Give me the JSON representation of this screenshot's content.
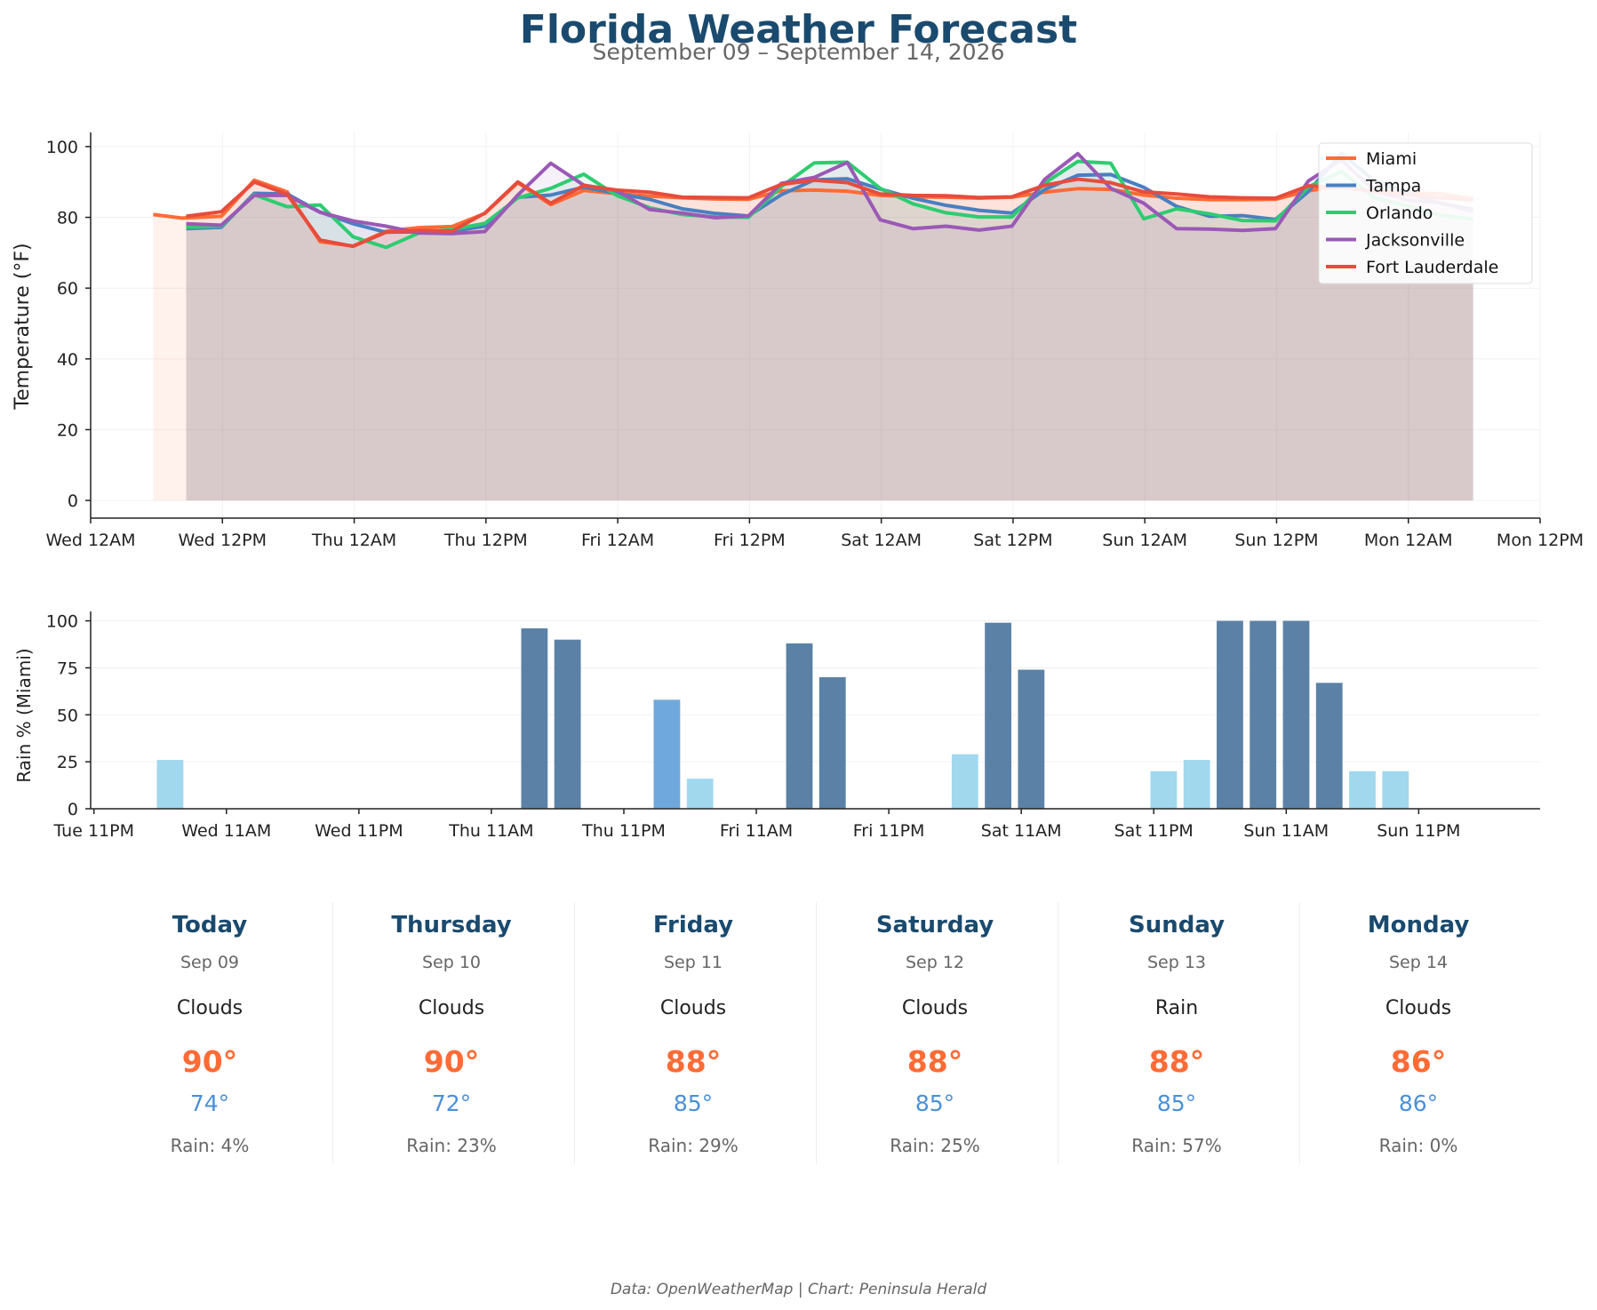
{
  "header": {
    "title": "Florida Weather Forecast",
    "subtitle": "September 09 – September 14, 2026"
  },
  "chart_data": [
    {
      "type": "line",
      "ylabel": "Temperature (°F)",
      "ylim": [
        -5,
        104
      ],
      "yticks": [
        0,
        20,
        40,
        60,
        80,
        100
      ],
      "x_unit": "hour of forecast period (0 = Wed 12AM, Sep 09)",
      "xlim": [
        0,
        132
      ],
      "xticks": [
        {
          "x": 0,
          "label": "Wed 12AM"
        },
        {
          "x": 12,
          "label": "Wed 12PM"
        },
        {
          "x": 24,
          "label": "Thu 12AM"
        },
        {
          "x": 36,
          "label": "Thu 12PM"
        },
        {
          "x": 48,
          "label": "Fri 12AM"
        },
        {
          "x": 60,
          "label": "Fri 12PM"
        },
        {
          "x": 72,
          "label": "Sat 12AM"
        },
        {
          "x": 84,
          "label": "Sat 12PM"
        },
        {
          "x": 96,
          "label": "Sun 12AM"
        },
        {
          "x": 108,
          "label": "Sun 12PM"
        },
        {
          "x": 120,
          "label": "Mon 12AM"
        },
        {
          "x": 132,
          "label": "Mon 12PM"
        }
      ],
      "legend_position": "top-right",
      "grid": true,
      "series": [
        {
          "name": "Miami",
          "color": "#ff6b35",
          "fill": true,
          "x": [
            5.7,
            8.3,
            11.9,
            14.9,
            17.9,
            20.9,
            23.9,
            26.9,
            29.9,
            32.9,
            35.9,
            38.9,
            41.9,
            44.9,
            47.9,
            50.9,
            53.9,
            56.9,
            59.9,
            62.9,
            65.9,
            68.9,
            71.9,
            74.9,
            77.9,
            80.9,
            83.9,
            86.9,
            89.9,
            92.9,
            95.9,
            98.9,
            101.9,
            104.9,
            107.9,
            110.9,
            113.9,
            116.9,
            119.9,
            122.9,
            125.9
          ],
          "y": [
            80.8,
            79.8,
            80.3,
            90.5,
            87.2,
            73.1,
            71.9,
            76.1,
            77.1,
            77.4,
            81.1,
            89.8,
            83.6,
            87.6,
            86.7,
            86.0,
            85.5,
            85.2,
            85.1,
            87.5,
            87.7,
            87.4,
            86.2,
            85.8,
            85.7,
            85.4,
            85.7,
            87.1,
            88.1,
            87.9,
            86.3,
            85.4,
            85.0,
            85.0,
            85.1,
            87.5,
            88.8,
            87.3,
            86.9,
            86.7,
            85.2
          ]
        },
        {
          "name": "Tampa",
          "color": "#4a7fc1",
          "fill": true,
          "x": [
            8.7,
            11.9,
            14.9,
            17.9,
            20.9,
            23.9,
            26.9,
            29.9,
            32.9,
            35.9,
            38.9,
            41.9,
            44.9,
            47.9,
            50.9,
            53.9,
            56.9,
            59.9,
            62.9,
            65.9,
            68.9,
            71.9,
            74.9,
            77.9,
            80.9,
            83.9,
            86.9,
            89.9,
            92.9,
            95.9,
            98.9,
            101.9,
            104.9,
            107.9,
            110.9,
            113.9,
            116.9,
            119.9,
            122.9,
            125.9
          ],
          "y": [
            76.8,
            77.2,
            86.8,
            86.6,
            81.5,
            78.2,
            75.8,
            75.9,
            76.1,
            77.5,
            85.7,
            86.3,
            88.5,
            86.8,
            85.1,
            82.4,
            81.1,
            80.4,
            86.4,
            90.6,
            90.9,
            88.0,
            85.4,
            83.4,
            82.0,
            81.2,
            87.9,
            91.9,
            92.1,
            88.5,
            83.1,
            80.3,
            80.5,
            79.4,
            87.3,
            98.1,
            90.3,
            87.0,
            84.0,
            82.2
          ]
        },
        {
          "name": "Orlando",
          "color": "#2ecc71",
          "fill": true,
          "x": [
            8.7,
            11.9,
            14.9,
            17.9,
            20.9,
            23.9,
            26.9,
            29.9,
            32.9,
            35.9,
            38.9,
            41.9,
            44.9,
            47.9,
            50.9,
            53.9,
            56.9,
            59.9,
            62.9,
            65.9,
            68.9,
            71.9,
            74.9,
            77.9,
            80.9,
            83.9,
            86.9,
            89.9,
            92.9,
            95.9,
            98.9,
            101.9,
            104.9,
            107.9,
            110.9,
            113.9,
            116.9,
            119.9,
            122.9,
            125.9
          ],
          "y": [
            77.2,
            77.5,
            86.4,
            83.0,
            83.5,
            74.5,
            71.5,
            75.6,
            76.6,
            78.3,
            85.5,
            88.2,
            92.2,
            86.2,
            82.7,
            80.8,
            80.1,
            80.0,
            88.7,
            95.4,
            95.6,
            88.2,
            83.8,
            81.3,
            80.1,
            80.1,
            89.7,
            95.8,
            95.3,
            79.6,
            82.4,
            81.0,
            79.1,
            79.0,
            88.6,
            93.0,
            85.6,
            83.2,
            80.6,
            79.5
          ]
        },
        {
          "name": "Jacksonville",
          "color": "#9b59b6",
          "fill": true,
          "x": [
            8.7,
            11.9,
            14.9,
            17.9,
            20.9,
            23.9,
            26.9,
            29.9,
            32.9,
            35.9,
            38.9,
            41.9,
            44.9,
            47.9,
            50.9,
            53.9,
            56.9,
            59.9,
            62.9,
            65.9,
            68.9,
            71.9,
            74.9,
            77.9,
            80.9,
            83.9,
            86.9,
            89.9,
            92.9,
            95.9,
            98.9,
            101.9,
            104.9,
            107.9,
            110.9,
            113.9,
            116.9,
            119.9,
            122.9,
            125.9
          ],
          "y": [
            78.2,
            77.8,
            86.2,
            86.2,
            81.4,
            79.0,
            77.5,
            75.6,
            75.4,
            76.0,
            86.3,
            95.3,
            89.1,
            87.6,
            82.2,
            81.2,
            79.9,
            80.4,
            89.6,
            91.3,
            95.5,
            79.3,
            76.8,
            77.5,
            76.4,
            77.5,
            90.8,
            98.0,
            88.2,
            84.0,
            76.8,
            76.7,
            76.3,
            76.8,
            90.3,
            96.3,
            87.5,
            84.9,
            84.1,
            81.7
          ]
        },
        {
          "name": "Fort Lauderdale",
          "color": "#e74c3c",
          "fill": true,
          "x": [
            8.7,
            11.9,
            14.9,
            17.9,
            20.9,
            23.9,
            26.9,
            29.9,
            32.9,
            35.9,
            38.9,
            41.9,
            44.9,
            47.9,
            50.9,
            53.9,
            56.9,
            59.9,
            62.9,
            65.9,
            68.9,
            71.9,
            74.9,
            77.9,
            80.9,
            83.9,
            86.9,
            89.9,
            92.9,
            95.9,
            98.9,
            101.9,
            104.9,
            107.9,
            110.9,
            113.9,
            116.9,
            119.9,
            122.9,
            125.9
          ],
          "y": [
            80.3,
            81.6,
            90.0,
            86.5,
            73.6,
            71.8,
            75.8,
            76.3,
            76.1,
            81.2,
            90.0,
            84.0,
            89.0,
            87.7,
            87.1,
            85.7,
            85.6,
            85.5,
            89.3,
            90.5,
            89.8,
            86.6,
            86.2,
            86.1,
            85.6,
            85.8,
            89.1,
            90.8,
            89.8,
            87.2,
            86.6,
            85.8,
            85.5,
            85.4,
            88.9,
            88.5,
            87.3,
            86.4,
            85.5,
            85.0
          ]
        }
      ]
    },
    {
      "type": "bar",
      "ylabel": "Rain % (Miami)",
      "ylim": [
        0,
        105
      ],
      "yticks": [
        0,
        25,
        50,
        75,
        100
      ],
      "x_unit": "hour of forecast period (0 = Tue 11PM, Sep 08)",
      "xlim": [
        -0.3,
        131
      ],
      "xticks": [
        {
          "x": 0,
          "label": "Tue 11PM"
        },
        {
          "x": 12,
          "label": "Wed 11AM"
        },
        {
          "x": 24,
          "label": "Wed 11PM"
        },
        {
          "x": 36,
          "label": "Thu 11AM"
        },
        {
          "x": 48,
          "label": "Thu 11PM"
        },
        {
          "x": 60,
          "label": "Fri 11AM"
        },
        {
          "x": 72,
          "label": "Fri 11PM"
        },
        {
          "x": 84,
          "label": "Sat 11AM"
        },
        {
          "x": 96,
          "label": "Sat 11PM"
        },
        {
          "x": 108,
          "label": "Sun 11AM"
        },
        {
          "x": 120,
          "label": "Sun 11PM"
        }
      ],
      "grid": true,
      "color_scale": {
        "low": "#a1d8ee",
        "mid": "#6fa8dc",
        "high": "#5b82a6"
      },
      "bars": [
        {
          "x": 6.9,
          "value": 26,
          "level": "low"
        },
        {
          "x": 39.9,
          "value": 96,
          "level": "high"
        },
        {
          "x": 42.9,
          "value": 90,
          "level": "high"
        },
        {
          "x": 51.9,
          "value": 58,
          "level": "mid"
        },
        {
          "x": 54.9,
          "value": 16,
          "level": "low"
        },
        {
          "x": 63.9,
          "value": 88,
          "level": "high"
        },
        {
          "x": 66.9,
          "value": 70,
          "level": "high"
        },
        {
          "x": 78.9,
          "value": 29,
          "level": "low"
        },
        {
          "x": 81.9,
          "value": 99,
          "level": "high"
        },
        {
          "x": 84.9,
          "value": 74,
          "level": "high"
        },
        {
          "x": 96.9,
          "value": 20,
          "level": "low"
        },
        {
          "x": 99.9,
          "value": 26,
          "level": "low"
        },
        {
          "x": 102.9,
          "value": 100,
          "level": "high"
        },
        {
          "x": 105.9,
          "value": 100,
          "level": "high"
        },
        {
          "x": 108.9,
          "value": 100,
          "level": "high"
        },
        {
          "x": 111.9,
          "value": 67,
          "level": "high"
        },
        {
          "x": 114.9,
          "value": 20,
          "level": "low"
        },
        {
          "x": 117.9,
          "value": 20,
          "level": "low"
        }
      ]
    }
  ],
  "forecast": [
    {
      "day": "Today",
      "date": "Sep 09",
      "condition": "Clouds",
      "high": "90°",
      "low": "74°",
      "rain": "Rain: 4%"
    },
    {
      "day": "Thursday",
      "date": "Sep 10",
      "condition": "Clouds",
      "high": "90°",
      "low": "72°",
      "rain": "Rain: 23%"
    },
    {
      "day": "Friday",
      "date": "Sep 11",
      "condition": "Clouds",
      "high": "88°",
      "low": "85°",
      "rain": "Rain: 29%"
    },
    {
      "day": "Saturday",
      "date": "Sep 12",
      "condition": "Clouds",
      "high": "88°",
      "low": "85°",
      "rain": "Rain: 25%"
    },
    {
      "day": "Sunday",
      "date": "Sep 13",
      "condition": "Rain",
      "high": "88°",
      "low": "85°",
      "rain": "Rain: 57%"
    },
    {
      "day": "Monday",
      "date": "Sep 14",
      "condition": "Clouds",
      "high": "86°",
      "low": "86°",
      "rain": "Rain: 0%"
    }
  ],
  "footer": "Data: OpenWeatherMap | Chart: Peninsula Herald"
}
